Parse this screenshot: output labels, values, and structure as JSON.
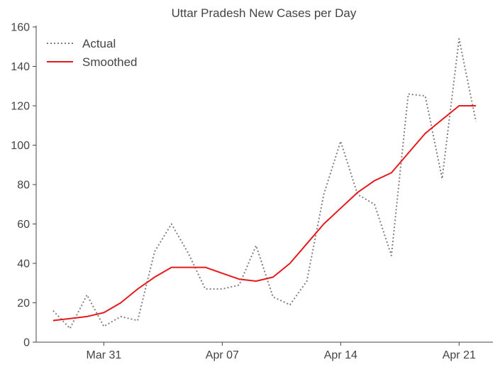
{
  "chart_data": {
    "type": "line",
    "title": "Uttar Pradesh New Cases per Day",
    "xlabel": "",
    "ylabel": "",
    "ylim": [
      0,
      160
    ],
    "xlim": [
      "2020-03-27",
      "2020-04-23"
    ],
    "yticks": [
      0,
      20,
      40,
      60,
      80,
      100,
      120,
      140,
      160
    ],
    "xticks": [
      {
        "date": "2020-03-31",
        "label": "Mar 31"
      },
      {
        "date": "2020-04-07",
        "label": "Apr 07"
      },
      {
        "date": "2020-04-14",
        "label": "Apr 14"
      },
      {
        "date": "2020-04-21",
        "label": "Apr 21"
      }
    ],
    "grid": false,
    "legend_position": "top-left",
    "x": [
      "2020-03-28",
      "2020-03-29",
      "2020-03-30",
      "2020-03-31",
      "2020-04-01",
      "2020-04-02",
      "2020-04-03",
      "2020-04-04",
      "2020-04-05",
      "2020-04-06",
      "2020-04-07",
      "2020-04-08",
      "2020-04-09",
      "2020-04-10",
      "2020-04-11",
      "2020-04-12",
      "2020-04-13",
      "2020-04-14",
      "2020-04-15",
      "2020-04-16",
      "2020-04-17",
      "2020-04-18",
      "2020-04-19",
      "2020-04-20",
      "2020-04-21",
      "2020-04-22"
    ],
    "series": [
      {
        "name": "Actual",
        "style": "dotted",
        "color": "#808080",
        "values": [
          16,
          7,
          24,
          8,
          13,
          11,
          46,
          60,
          45,
          27,
          27,
          29,
          49,
          23,
          19,
          31,
          75,
          102,
          75,
          70,
          44,
          126,
          125,
          83,
          154,
          112
        ]
      },
      {
        "name": "Smoothed",
        "style": "solid",
        "color": "#e41a1c",
        "values": [
          11,
          12,
          13,
          15,
          20,
          27,
          33,
          38,
          38,
          38,
          35,
          32,
          31,
          33,
          40,
          50,
          60,
          68,
          76,
          82,
          86,
          96,
          106,
          113,
          120,
          120
        ]
      }
    ]
  }
}
